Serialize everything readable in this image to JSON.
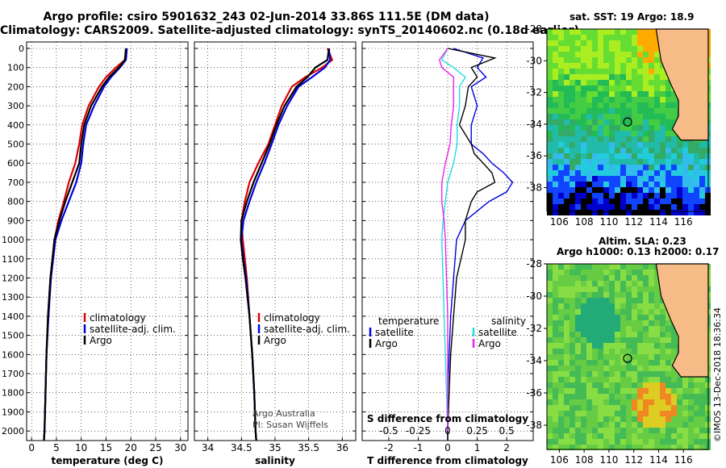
{
  "header": {
    "title_line1": "Argo profile: csiro 5901632_243 02-Jun-2014 33.86S 111.5E (DM data)",
    "title_line2": "Climatology: CARS2009. Satellite-adjusted climatology: synTS_20140602.nc (0.18d earlier)"
  },
  "colors": {
    "climatology": "#dd0000",
    "satellite_clim": "#0000dd",
    "argo": "#000000",
    "s_satellite": "#22dddd",
    "s_argo": "#ee22ee"
  },
  "chart_data": [
    {
      "type": "line",
      "name": "temperature-profile",
      "xlabel": "temperature (deg C)",
      "ylabel": "",
      "xlim": [
        -1,
        31.5
      ],
      "ylim": [
        2050,
        0
      ],
      "xticks": [
        0,
        5,
        10,
        15,
        20,
        25,
        30
      ],
      "yticks": [
        0,
        100,
        200,
        300,
        400,
        500,
        600,
        700,
        800,
        900,
        1000,
        1100,
        1200,
        1300,
        1400,
        1500,
        1600,
        1700,
        1800,
        1900,
        2000
      ],
      "legend": [
        "climatology",
        "satellite-adj. clim.",
        "Argo"
      ],
      "series": [
        {
          "name": "climatology",
          "color": "#dd0000",
          "depth": [
            0,
            60,
            100,
            150,
            200,
            300,
            400,
            500,
            600,
            700,
            800,
            900,
            1000,
            1200,
            1400,
            1600,
            1800,
            2000,
            2050
          ],
          "values": [
            19.2,
            18.8,
            17.0,
            15.0,
            13.6,
            11.5,
            10.2,
            9.6,
            8.8,
            7.5,
            6.5,
            5.4,
            4.6,
            3.8,
            3.3,
            3.0,
            2.8,
            2.6,
            2.5
          ]
        },
        {
          "name": "satellite-adj. clim.",
          "color": "#0000dd",
          "depth": [
            0,
            60,
            100,
            150,
            200,
            300,
            400,
            500,
            600,
            700,
            800,
            900,
            1000,
            1200,
            1400,
            1600,
            1800,
            2000,
            2050
          ],
          "values": [
            19.2,
            19.0,
            17.8,
            16.0,
            14.6,
            12.6,
            11.0,
            10.4,
            10.0,
            9.0,
            7.5,
            6.0,
            4.8,
            3.9,
            3.4,
            3.0,
            2.8,
            2.6,
            2.5
          ]
        },
        {
          "name": "Argo",
          "color": "#000000",
          "depth": [
            0,
            60,
            100,
            150,
            200,
            300,
            400,
            500,
            600,
            700,
            800,
            900,
            1000,
            1200,
            1400,
            1600,
            1800,
            2000,
            2050
          ],
          "values": [
            19.0,
            18.8,
            17.6,
            15.6,
            14.2,
            12.0,
            10.6,
            10.0,
            9.6,
            8.2,
            6.8,
            5.6,
            4.6,
            3.8,
            3.3,
            3.0,
            2.8,
            2.6,
            2.5
          ]
        }
      ]
    },
    {
      "type": "line",
      "name": "salinity-profile",
      "xlabel": "salinity",
      "ylabel": "",
      "xlim": [
        33.8,
        36.2
      ],
      "ylim": [
        2050,
        0
      ],
      "xticks": [
        34,
        34.5,
        35,
        35.5,
        36
      ],
      "legend": [
        "climatology",
        "satellite-adj. clim.",
        "Argo"
      ],
      "annotations": [
        "Argo Australia",
        "PI: Susan Wijffels"
      ],
      "series": [
        {
          "name": "climatology",
          "color": "#dd0000",
          "depth": [
            0,
            60,
            100,
            150,
            200,
            300,
            400,
            500,
            600,
            700,
            800,
            900,
            1000,
            1100,
            1200,
            1400,
            1600,
            1800,
            2000,
            2050
          ],
          "values": [
            35.78,
            35.85,
            35.7,
            35.45,
            35.25,
            35.1,
            35.0,
            34.9,
            34.75,
            34.62,
            34.55,
            34.5,
            34.52,
            34.55,
            34.58,
            34.62,
            34.66,
            34.69,
            34.71,
            34.72
          ]
        },
        {
          "name": "satellite-adj. clim.",
          "color": "#0000dd",
          "depth": [
            0,
            60,
            100,
            150,
            200,
            300,
            400,
            500,
            600,
            700,
            800,
            900,
            1000,
            1100,
            1200,
            1400,
            1600,
            1800,
            2000,
            2050
          ],
          "values": [
            35.8,
            35.82,
            35.74,
            35.55,
            35.35,
            35.18,
            35.05,
            34.95,
            34.84,
            34.72,
            34.62,
            34.53,
            34.5,
            34.53,
            34.57,
            34.62,
            34.66,
            34.69,
            34.71,
            34.72
          ]
        },
        {
          "name": "Argo",
          "color": "#000000",
          "depth": [
            0,
            60,
            100,
            150,
            200,
            300,
            400,
            500,
            600,
            700,
            800,
            900,
            1000,
            1100,
            1200,
            1400,
            1600,
            1800,
            2000,
            2050
          ],
          "values": [
            35.8,
            35.78,
            35.6,
            35.48,
            35.32,
            35.14,
            35.02,
            34.92,
            34.8,
            34.68,
            34.58,
            34.5,
            34.49,
            34.52,
            34.56,
            34.62,
            34.66,
            34.69,
            34.71,
            34.72
          ]
        }
      ]
    },
    {
      "type": "line",
      "name": "difference-profile",
      "xlabel": "T difference from climatology",
      "xlabel_top": "S difference from climatology",
      "xticks": [
        -2,
        -1,
        0,
        1,
        2
      ],
      "xticks_top": [
        "-0.5",
        "-0.25",
        "0",
        "0.25",
        "0.5"
      ],
      "xlim": [
        -2.9,
        2.9
      ],
      "ylim": [
        2050,
        0
      ],
      "legend_left_title": "temperature",
      "legend_right_title": "salinity",
      "legend_left": [
        "satellite",
        "Argo"
      ],
      "legend_right": [
        "satellite",
        "Argo"
      ],
      "series": [
        {
          "name": "T satellite",
          "color": "#0000dd",
          "depth": [
            0,
            50,
            100,
            150,
            200,
            300,
            400,
            500,
            550,
            600,
            650,
            700,
            750,
            800,
            900,
            1000,
            1200,
            1400,
            1600,
            1800,
            2000,
            2050
          ],
          "values": [
            0.2,
            1.2,
            1.0,
            1.3,
            0.8,
            1.0,
            0.8,
            0.8,
            1.2,
            1.5,
            1.9,
            2.2,
            2.0,
            1.4,
            0.6,
            0.3,
            0.2,
            0.1,
            0.05,
            0.0,
            0.0,
            0.0
          ]
        },
        {
          "name": "T Argo",
          "color": "#000000",
          "depth": [
            0,
            50,
            100,
            150,
            200,
            300,
            400,
            500,
            550,
            600,
            650,
            700,
            750,
            800,
            900,
            1000,
            1200,
            1400,
            1600,
            1800,
            2000,
            2050
          ],
          "values": [
            0.0,
            1.6,
            0.8,
            1.0,
            0.7,
            0.6,
            0.4,
            0.8,
            0.9,
            1.2,
            1.5,
            1.6,
            1.0,
            0.8,
            0.6,
            0.6,
            0.3,
            0.2,
            0.1,
            0.05,
            0.0,
            0.0
          ]
        },
        {
          "name": "S satellite",
          "color": "#22dddd",
          "depth": [
            0,
            60,
            100,
            150,
            200,
            300,
            400,
            500,
            600,
            700,
            800,
            900,
            1000,
            1200,
            1400,
            1600,
            1800,
            2000
          ],
          "values": [
            0.0,
            -0.05,
            0.05,
            0.15,
            0.1,
            0.1,
            0.08,
            0.08,
            0.05,
            0.0,
            -0.02,
            -0.04,
            -0.05,
            -0.04,
            -0.03,
            -0.02,
            -0.01,
            0.0
          ]
        },
        {
          "name": "S Argo",
          "color": "#ee22ee",
          "depth": [
            0,
            60,
            100,
            150,
            200,
            300,
            400,
            500,
            600,
            700,
            800,
            900,
            1000,
            1200,
            1400,
            1600,
            1800,
            2000
          ],
          "values": [
            0.0,
            -0.07,
            -0.05,
            0.05,
            0.05,
            0.05,
            0.03,
            0.02,
            -0.02,
            -0.05,
            -0.05,
            -0.03,
            -0.02,
            -0.01,
            0.0,
            0.0,
            0.0,
            0.0
          ]
        }
      ]
    },
    {
      "type": "heatmap",
      "name": "sst-map",
      "title": "sat. SST: 19 Argo: 18.9",
      "xticks": [
        "106",
        "108",
        "110",
        "112",
        "114",
        "116"
      ],
      "yticks": [
        "-28",
        "-30",
        "-32",
        "-34",
        "-36",
        "-38"
      ],
      "xlim": [
        105,
        118
      ],
      "ylim": [
        -39.5,
        -28
      ],
      "float_position": {
        "lon": 111.5,
        "lat": -33.86
      }
    },
    {
      "type": "heatmap",
      "name": "sla-map",
      "title_line1": "Altim. SLA: 0.23",
      "title_line2": "Argo h1000: 0.13 h2000: 0.17",
      "xticks": [
        "106",
        "108",
        "110",
        "112",
        "114",
        "116"
      ],
      "yticks": [
        "-28",
        "-30",
        "-32",
        "-34",
        "-36",
        "-38"
      ],
      "xlim": [
        105,
        118
      ],
      "ylim": [
        -39.5,
        -28
      ],
      "float_position": {
        "lon": 111.5,
        "lat": -33.86
      }
    }
  ],
  "footer": {
    "stamp": "©IMOS 13-Dec-2018 18:36:34"
  }
}
